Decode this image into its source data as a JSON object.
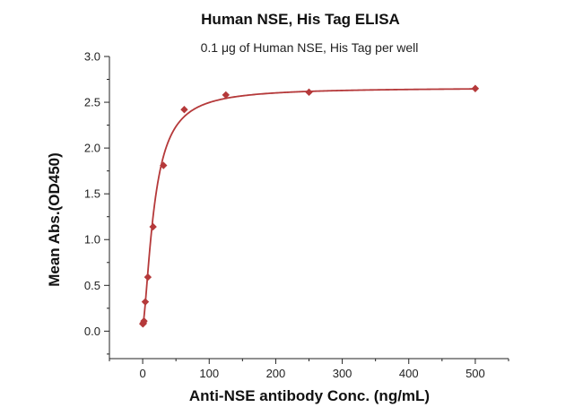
{
  "chart_data": {
    "type": "scatter",
    "title": "Human NSE, His Tag ELISA",
    "subtitle": "0.1 μg of Human NSE, His Tag per well",
    "xlabel": "Anti-NSE antibody Conc. (ng/mL)",
    "ylabel": "Mean Abs.(OD450)",
    "xlim": [
      -50,
      550
    ],
    "ylim": [
      -0.3,
      3.0
    ],
    "x_ticks": [
      0,
      100,
      200,
      300,
      400,
      500
    ],
    "y_ticks": [
      0.0,
      0.5,
      1.0,
      1.5,
      2.0,
      2.5,
      3.0
    ],
    "x_tick_labels": [
      "0",
      "100",
      "200",
      "300",
      "400",
      "500"
    ],
    "y_tick_labels": [
      "0.0",
      "0.5",
      "1.0",
      "1.5",
      "2.0",
      "2.5",
      "3.0"
    ],
    "grid": false,
    "legend": "none",
    "series": [
      {
        "x": [
          0.24,
          0.49,
          0.98,
          1.95,
          3.9,
          7.8,
          15.6,
          31.25,
          62.5,
          125,
          250,
          500
        ],
        "y": [
          0.08,
          0.08,
          0.09,
          0.11,
          0.32,
          0.59,
          1.14,
          1.81,
          2.42,
          2.58,
          2.61,
          2.65
        ],
        "marker": "diamond",
        "color": "#b5393a",
        "fit_curve": true,
        "fit_color": "#b5393a"
      }
    ]
  }
}
